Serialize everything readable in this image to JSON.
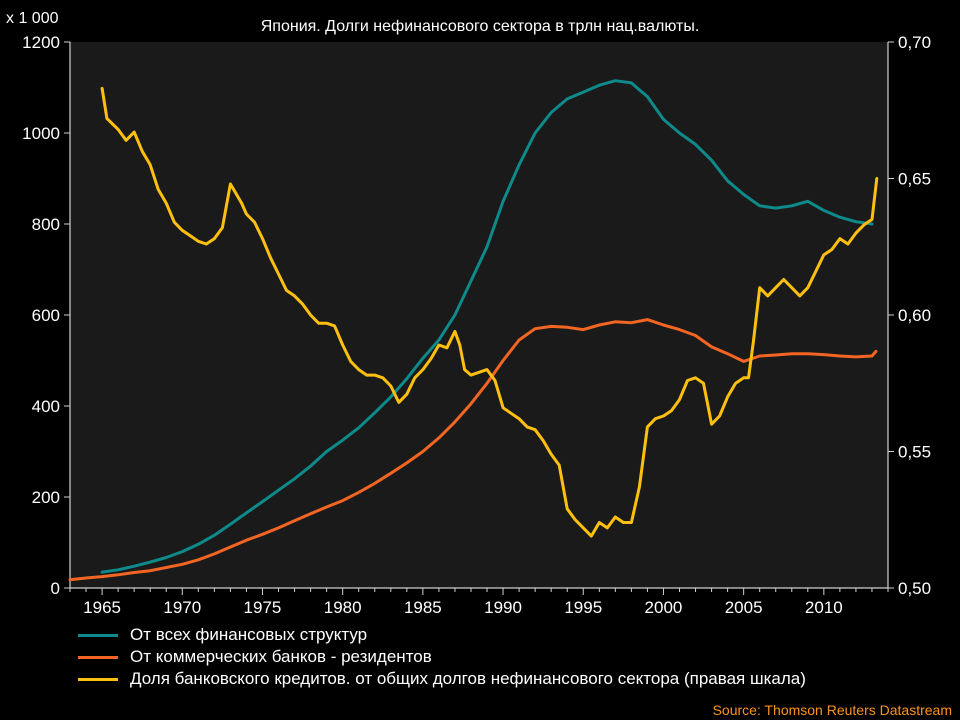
{
  "chart_data": {
    "type": "line",
    "title": "Япония. Долги нефинансового сектора в трлн нац.валюты.",
    "y_unit_label": "x 1 000",
    "xlim": [
      1963,
      2014
    ],
    "ylim_left": [
      0,
      1200
    ],
    "ylim_right": [
      0.5,
      0.7
    ],
    "x_ticks": [
      "1965",
      "1970",
      "1975",
      "1980",
      "1985",
      "1990",
      "1995",
      "2000",
      "2005",
      "2010"
    ],
    "y_ticks_left": [
      "0",
      "200",
      "400",
      "600",
      "800",
      "1000",
      "1200"
    ],
    "y_ticks_right": [
      "0,50",
      "0,55",
      "0,60",
      "0,65",
      "0,70"
    ],
    "grid": false,
    "legend_position": "bottom",
    "source": "Source: Thomson Reuters Datastream",
    "series": [
      {
        "name": "От всех финансовых структур",
        "axis": "left",
        "color": "#0E8A8A",
        "points": [
          [
            1965,
            35
          ],
          [
            1966,
            40
          ],
          [
            1967,
            48
          ],
          [
            1968,
            57
          ],
          [
            1969,
            67
          ],
          [
            1970,
            80
          ],
          [
            1971,
            96
          ],
          [
            1972,
            116
          ],
          [
            1973,
            140
          ],
          [
            1974,
            165
          ],
          [
            1975,
            190
          ],
          [
            1976,
            215
          ],
          [
            1977,
            240
          ],
          [
            1978,
            268
          ],
          [
            1979,
            300
          ],
          [
            1980,
            325
          ],
          [
            1981,
            352
          ],
          [
            1982,
            385
          ],
          [
            1983,
            420
          ],
          [
            1984,
            460
          ],
          [
            1985,
            505
          ],
          [
            1986,
            545
          ],
          [
            1987,
            600
          ],
          [
            1988,
            675
          ],
          [
            1989,
            750
          ],
          [
            1990,
            850
          ],
          [
            1991,
            930
          ],
          [
            1992,
            1000
          ],
          [
            1993,
            1045
          ],
          [
            1994,
            1075
          ],
          [
            1995,
            1090
          ],
          [
            1996,
            1105
          ],
          [
            1997,
            1115
          ],
          [
            1998,
            1110
          ],
          [
            1999,
            1080
          ],
          [
            2000,
            1030
          ],
          [
            2001,
            1000
          ],
          [
            2002,
            975
          ],
          [
            2003,
            940
          ],
          [
            2004,
            895
          ],
          [
            2005,
            865
          ],
          [
            2006,
            840
          ],
          [
            2007,
            835
          ],
          [
            2008,
            840
          ],
          [
            2009,
            850
          ],
          [
            2010,
            830
          ],
          [
            2011,
            815
          ],
          [
            2012,
            805
          ],
          [
            2013,
            800
          ]
        ]
      },
      {
        "name": "От коммерческих банков - резидентов",
        "axis": "left",
        "color": "#F26522",
        "points": [
          [
            1963,
            18
          ],
          [
            1964,
            22
          ],
          [
            1965,
            25
          ],
          [
            1966,
            29
          ],
          [
            1967,
            34
          ],
          [
            1968,
            38
          ],
          [
            1969,
            45
          ],
          [
            1970,
            52
          ],
          [
            1971,
            62
          ],
          [
            1972,
            75
          ],
          [
            1973,
            90
          ],
          [
            1974,
            105
          ],
          [
            1975,
            118
          ],
          [
            1976,
            132
          ],
          [
            1977,
            148
          ],
          [
            1978,
            163
          ],
          [
            1979,
            178
          ],
          [
            1980,
            192
          ],
          [
            1981,
            210
          ],
          [
            1982,
            230
          ],
          [
            1983,
            252
          ],
          [
            1984,
            275
          ],
          [
            1985,
            300
          ],
          [
            1986,
            330
          ],
          [
            1987,
            365
          ],
          [
            1988,
            405
          ],
          [
            1989,
            450
          ],
          [
            1990,
            500
          ],
          [
            1991,
            545
          ],
          [
            1992,
            570
          ],
          [
            1993,
            575
          ],
          [
            1994,
            573
          ],
          [
            1995,
            568
          ],
          [
            1996,
            578
          ],
          [
            1997,
            585
          ],
          [
            1998,
            583
          ],
          [
            1999,
            590
          ],
          [
            2000,
            578
          ],
          [
            2001,
            568
          ],
          [
            2002,
            555
          ],
          [
            2003,
            530
          ],
          [
            2004,
            515
          ],
          [
            2005,
            498
          ],
          [
            2006,
            510
          ],
          [
            2007,
            512
          ],
          [
            2008,
            515
          ],
          [
            2009,
            515
          ],
          [
            2010,
            513
          ],
          [
            2011,
            510
          ],
          [
            2012,
            508
          ],
          [
            2013,
            510
          ],
          [
            2013.25,
            520
          ]
        ]
      },
      {
        "name": "Доля банковского кредитов. от общих долгов нефинансового сектора (правая шкала)",
        "axis": "right",
        "color": "#FDC010",
        "points": [
          [
            1965,
            0.683
          ],
          [
            1965.3,
            0.672
          ],
          [
            1966,
            0.668
          ],
          [
            1966.5,
            0.664
          ],
          [
            1967,
            0.667
          ],
          [
            1967.5,
            0.66
          ],
          [
            1968,
            0.655
          ],
          [
            1968.5,
            0.646
          ],
          [
            1969,
            0.641
          ],
          [
            1969.5,
            0.634
          ],
          [
            1970,
            0.631
          ],
          [
            1970.5,
            0.629
          ],
          [
            1971,
            0.627
          ],
          [
            1971.5,
            0.626
          ],
          [
            1972,
            0.628
          ],
          [
            1972.5,
            0.632
          ],
          [
            1973,
            0.648
          ],
          [
            1973.3,
            0.645
          ],
          [
            1973.7,
            0.641
          ],
          [
            1974,
            0.637
          ],
          [
            1974.5,
            0.634
          ],
          [
            1975,
            0.628
          ],
          [
            1975.5,
            0.621
          ],
          [
            1976,
            0.615
          ],
          [
            1976.5,
            0.609
          ],
          [
            1977,
            0.607
          ],
          [
            1977.5,
            0.604
          ],
          [
            1978,
            0.6
          ],
          [
            1978.5,
            0.597
          ],
          [
            1979,
            0.597
          ],
          [
            1979.5,
            0.596
          ],
          [
            1980,
            0.589
          ],
          [
            1980.5,
            0.583
          ],
          [
            1981,
            0.58
          ],
          [
            1981.5,
            0.578
          ],
          [
            1982,
            0.578
          ],
          [
            1982.5,
            0.577
          ],
          [
            1983,
            0.574
          ],
          [
            1983.5,
            0.568
          ],
          [
            1984,
            0.571
          ],
          [
            1984.5,
            0.577
          ],
          [
            1985,
            0.58
          ],
          [
            1985.5,
            0.584
          ],
          [
            1986,
            0.589
          ],
          [
            1986.5,
            0.588
          ],
          [
            1987,
            0.594
          ],
          [
            1987.3,
            0.589
          ],
          [
            1987.6,
            0.58
          ],
          [
            1988,
            0.578
          ],
          [
            1988.5,
            0.579
          ],
          [
            1989,
            0.58
          ],
          [
            1989.5,
            0.576
          ],
          [
            1990,
            0.566
          ],
          [
            1990.5,
            0.564
          ],
          [
            1991,
            0.562
          ],
          [
            1991.5,
            0.559
          ],
          [
            1992,
            0.558
          ],
          [
            1992.5,
            0.554
          ],
          [
            1993,
            0.549
          ],
          [
            1993.5,
            0.545
          ],
          [
            1994,
            0.529
          ],
          [
            1994.5,
            0.525
          ],
          [
            1995,
            0.522
          ],
          [
            1995.5,
            0.519
          ],
          [
            1996,
            0.524
          ],
          [
            1996.5,
            0.522
          ],
          [
            1997,
            0.526
          ],
          [
            1997.5,
            0.524
          ],
          [
            1998,
            0.524
          ],
          [
            1998.5,
            0.537
          ],
          [
            1999,
            0.559
          ],
          [
            1999.5,
            0.562
          ],
          [
            2000,
            0.563
          ],
          [
            2000.5,
            0.565
          ],
          [
            2001,
            0.569
          ],
          [
            2001.5,
            0.576
          ],
          [
            2002,
            0.577
          ],
          [
            2002.5,
            0.575
          ],
          [
            2003,
            0.56
          ],
          [
            2003.5,
            0.563
          ],
          [
            2004,
            0.57
          ],
          [
            2004.5,
            0.575
          ],
          [
            2005,
            0.577
          ],
          [
            2005.3,
            0.577
          ],
          [
            2005.6,
            0.59
          ],
          [
            2006,
            0.61
          ],
          [
            2006.5,
            0.607
          ],
          [
            2007,
            0.61
          ],
          [
            2007.5,
            0.613
          ],
          [
            2008,
            0.61
          ],
          [
            2008.5,
            0.607
          ],
          [
            2009,
            0.61
          ],
          [
            2009.5,
            0.616
          ],
          [
            2010,
            0.622
          ],
          [
            2010.5,
            0.624
          ],
          [
            2011,
            0.628
          ],
          [
            2011.5,
            0.626
          ],
          [
            2012,
            0.63
          ],
          [
            2012.5,
            0.633
          ],
          [
            2013,
            0.635
          ],
          [
            2013.3,
            0.65
          ]
        ]
      }
    ]
  }
}
